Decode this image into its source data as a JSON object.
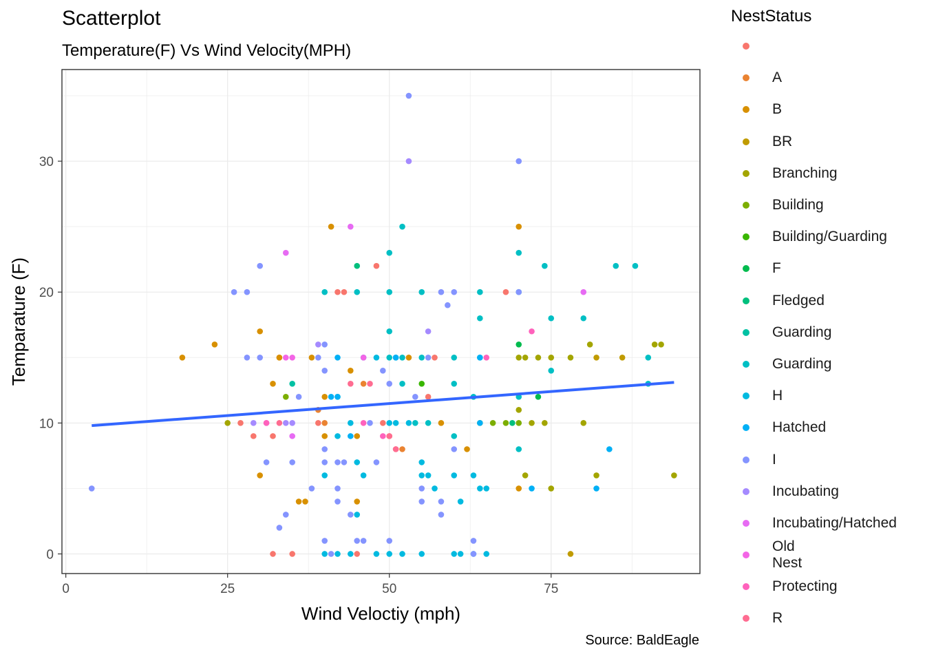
{
  "title": "Scatterplot",
  "subtitle": "Temperature(F) Vs Wind Velocity(MPH)",
  "caption": "Source: BaldEagle",
  "legend": {
    "title": "NestStatus",
    "items": [
      {
        "label": "",
        "color": "#F8766D"
      },
      {
        "label": "A",
        "color": "#EA8331"
      },
      {
        "label": "B",
        "color": "#D89000"
      },
      {
        "label": "BR",
        "color": "#C09B00"
      },
      {
        "label": "Branching",
        "color": "#A3A500"
      },
      {
        "label": "Building",
        "color": "#7CAE00"
      },
      {
        "label": "Building/Guarding",
        "color": "#39B600"
      },
      {
        "label": "F",
        "color": "#00BB4E"
      },
      {
        "label": "Fledged",
        "color": "#00BF7D"
      },
      {
        "label": "Guarding",
        "color": "#00C1A3"
      },
      {
        "label": "Guarding ",
        "color": "#00BFC4"
      },
      {
        "label": "H",
        "color": "#00BAE0"
      },
      {
        "label": "Hatched",
        "color": "#00B0F6"
      },
      {
        "label": "I",
        "color": "#8494FF"
      },
      {
        "label": "Incubating",
        "color": "#A58AFF"
      },
      {
        "label": "Incubating/Hatched",
        "color": "#E76BF3"
      },
      {
        "label": "Old Nest",
        "color": "#F365E6"
      },
      {
        "label": "Protecting",
        "color": "#FF62BC"
      },
      {
        "label": "R",
        "color": "#FF6C91"
      }
    ]
  },
  "chart_data": {
    "type": "scatter",
    "title": "Scatterplot",
    "subtitle": "Temperature(F) Vs Wind Velocity(MPH)",
    "xlabel": "Wind Veloctiy (mph)",
    "ylabel": "Temparature (F)",
    "xlim": [
      -0.6,
      98
    ],
    "ylim": [
      -1.5,
      37
    ],
    "xticks": [
      0,
      25,
      50,
      75
    ],
    "yticks": [
      0,
      10,
      20,
      30
    ],
    "grid": true,
    "legend_position": "right",
    "trend_line": {
      "x": [
        4,
        94
      ],
      "y": [
        9.8,
        13.1
      ],
      "color": "#3366FF"
    },
    "series": [
      {
        "name": "",
        "points": [
          [
            27,
            10
          ],
          [
            29,
            9
          ],
          [
            32,
            9
          ],
          [
            32,
            0
          ],
          [
            35,
            0
          ],
          [
            39,
            10
          ],
          [
            42,
            20
          ],
          [
            43,
            20
          ],
          [
            45,
            0
          ],
          [
            48,
            22
          ],
          [
            49,
            10
          ],
          [
            51,
            8
          ],
          [
            56,
            12
          ],
          [
            57,
            15
          ],
          [
            68,
            20
          ]
        ]
      },
      {
        "name": "A",
        "points": [
          [
            33,
            15
          ],
          [
            39,
            11
          ],
          [
            40,
            10
          ],
          [
            46,
            13
          ],
          [
            50,
            9
          ],
          [
            52,
            8
          ]
        ]
      },
      {
        "name": "B",
        "points": [
          [
            18,
            15
          ],
          [
            23,
            16
          ],
          [
            30,
            17
          ],
          [
            30,
            6
          ],
          [
            32,
            13
          ],
          [
            33,
            15
          ],
          [
            36,
            4
          ],
          [
            37,
            4
          ],
          [
            38,
            15
          ],
          [
            40,
            12
          ],
          [
            40,
            9
          ],
          [
            41,
            25
          ],
          [
            44,
            14
          ],
          [
            45,
            9
          ],
          [
            45,
            4
          ],
          [
            53,
            15
          ],
          [
            58,
            10
          ],
          [
            62,
            8
          ],
          [
            70,
            25
          ],
          [
            70,
            5
          ]
        ]
      },
      {
        "name": "BR",
        "points": [
          [
            78,
            0
          ],
          [
            82,
            15
          ],
          [
            86,
            15
          ]
        ]
      },
      {
        "name": "Branching",
        "points": [
          [
            25,
            10
          ],
          [
            70,
            15
          ],
          [
            71,
            15
          ],
          [
            73,
            15
          ],
          [
            75,
            15
          ],
          [
            75,
            5
          ],
          [
            78,
            15
          ],
          [
            80,
            10
          ],
          [
            81,
            16
          ],
          [
            82,
            6
          ],
          [
            71,
            6
          ],
          [
            70,
            11
          ],
          [
            72,
            10
          ],
          [
            74,
            10
          ],
          [
            91,
            16
          ],
          [
            92,
            16
          ],
          [
            94,
            6
          ]
        ]
      },
      {
        "name": "Building",
        "points": [
          [
            34,
            12
          ],
          [
            64,
            10
          ],
          [
            66,
            10
          ],
          [
            68,
            10
          ],
          [
            70,
            10
          ]
        ]
      },
      {
        "name": "Building/Guarding",
        "points": [
          [
            55,
            13
          ]
        ]
      },
      {
        "name": "F",
        "points": [
          [
            70,
            16
          ],
          [
            73,
            12
          ]
        ]
      },
      {
        "name": "Fledged",
        "points": [
          [
            45,
            22
          ],
          [
            69,
            10
          ]
        ]
      },
      {
        "name": "Guarding",
        "points": [
          [
            35,
            13
          ],
          [
            42,
            12
          ]
        ]
      },
      {
        "name": "Guarding ",
        "points": [
          [
            40,
            20
          ],
          [
            45,
            20
          ],
          [
            50,
            20
          ],
          [
            50,
            17
          ],
          [
            50,
            23
          ],
          [
            52,
            25
          ],
          [
            55,
            20
          ],
          [
            50,
            15
          ],
          [
            51,
            15
          ],
          [
            52,
            15
          ],
          [
            55,
            15
          ],
          [
            60,
            15
          ],
          [
            64,
            15
          ],
          [
            60,
            13
          ],
          [
            52,
            13
          ],
          [
            54,
            10
          ],
          [
            56,
            10
          ],
          [
            60,
            9
          ],
          [
            63,
            12
          ],
          [
            64,
            20
          ],
          [
            64,
            18
          ],
          [
            70,
            23
          ],
          [
            70,
            20
          ],
          [
            70,
            12
          ],
          [
            70,
            8
          ],
          [
            74,
            22
          ],
          [
            75,
            18
          ],
          [
            75,
            14
          ],
          [
            80,
            18
          ],
          [
            85,
            22
          ],
          [
            88,
            22
          ],
          [
            90,
            15
          ],
          [
            90,
            13
          ]
        ]
      },
      {
        "name": "H",
        "points": [
          [
            40,
            6
          ],
          [
            42,
            9
          ],
          [
            44,
            10
          ],
          [
            45,
            7
          ],
          [
            46,
            6
          ],
          [
            48,
            15
          ],
          [
            50,
            10
          ],
          [
            51,
            10
          ],
          [
            53,
            10
          ],
          [
            55,
            6
          ],
          [
            56,
            6
          ],
          [
            57,
            5
          ],
          [
            60,
            6
          ],
          [
            61,
            4
          ],
          [
            64,
            5
          ],
          [
            65,
            5
          ],
          [
            63,
            6
          ],
          [
            55,
            7
          ],
          [
            45,
            3
          ],
          [
            40,
            0
          ],
          [
            42,
            0
          ],
          [
            44,
            0
          ],
          [
            48,
            0
          ],
          [
            50,
            0
          ],
          [
            52,
            0
          ],
          [
            55,
            0
          ],
          [
            60,
            0
          ],
          [
            61,
            0
          ],
          [
            63,
            0
          ],
          [
            65,
            0
          ]
        ]
      },
      {
        "name": "Hatched",
        "points": [
          [
            42,
            15
          ],
          [
            46,
            15
          ],
          [
            51,
            15
          ],
          [
            64,
            10
          ],
          [
            72,
            5
          ],
          [
            82,
            5
          ],
          [
            84,
            8
          ],
          [
            64,
            15
          ],
          [
            42,
            12
          ],
          [
            41,
            12
          ],
          [
            44,
            9
          ]
        ]
      },
      {
        "name": "I",
        "points": [
          [
            4,
            5
          ],
          [
            26,
            20
          ],
          [
            28,
            20
          ],
          [
            28,
            15
          ],
          [
            30,
            22
          ],
          [
            30,
            15
          ],
          [
            31,
            7
          ],
          [
            33,
            2
          ],
          [
            34,
            3
          ],
          [
            35,
            7
          ],
          [
            36,
            12
          ],
          [
            38,
            5
          ],
          [
            39,
            15
          ],
          [
            40,
            16
          ],
          [
            40,
            14
          ],
          [
            40,
            8
          ],
          [
            40,
            7
          ],
          [
            42,
            7
          ],
          [
            43,
            7
          ],
          [
            40,
            1
          ],
          [
            41,
            0
          ],
          [
            42,
            5
          ],
          [
            42,
            4
          ],
          [
            44,
            3
          ],
          [
            45,
            1
          ],
          [
            46,
            1
          ],
          [
            47,
            10
          ],
          [
            48,
            7
          ],
          [
            49,
            14
          ],
          [
            50,
            13
          ],
          [
            50,
            1
          ],
          [
            54,
            12
          ],
          [
            55,
            4
          ],
          [
            58,
            20
          ],
          [
            59,
            19
          ],
          [
            60,
            20
          ],
          [
            60,
            8
          ],
          [
            58,
            4
          ],
          [
            58,
            3
          ],
          [
            63,
            1
          ],
          [
            63,
            0
          ],
          [
            70,
            30
          ],
          [
            70,
            20
          ],
          [
            53,
            35
          ],
          [
            55,
            5
          ],
          [
            56,
            15
          ]
        ]
      },
      {
        "name": "Incubating",
        "points": [
          [
            34,
            10
          ],
          [
            35,
            10
          ],
          [
            39,
            16
          ],
          [
            29,
            10
          ],
          [
            53,
            30
          ],
          [
            56,
            17
          ]
        ]
      },
      {
        "name": "Incubating/Hatched",
        "points": [
          [
            34,
            23
          ],
          [
            31,
            10
          ],
          [
            35,
            9
          ],
          [
            44,
            25
          ],
          [
            80,
            20
          ]
        ]
      },
      {
        "name": "Old Nest",
        "points": [
          [
            34,
            15
          ],
          [
            35,
            15
          ],
          [
            46,
            15
          ]
        ]
      },
      {
        "name": "Protecting",
        "points": [
          [
            31,
            10
          ],
          [
            46,
            10
          ],
          [
            49,
            9
          ],
          [
            65,
            15
          ],
          [
            72,
            17
          ]
        ]
      },
      {
        "name": "R",
        "points": [
          [
            33,
            10
          ],
          [
            44,
            13
          ],
          [
            47,
            13
          ],
          [
            50,
            9
          ],
          [
            51,
            8
          ]
        ]
      }
    ]
  }
}
